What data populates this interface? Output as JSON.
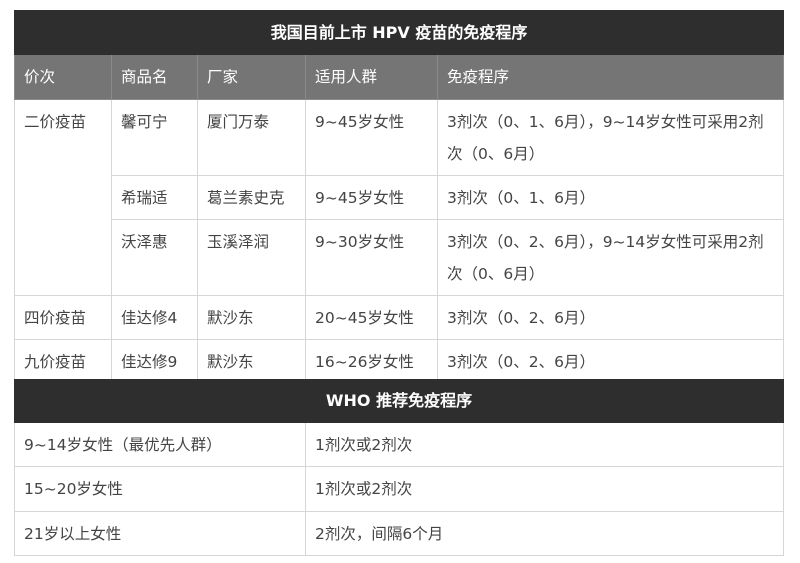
{
  "table1": {
    "title": "我国目前上市 HPV 疫苗的免疫程序",
    "headers": [
      "价次",
      "商品名",
      "厂家",
      "适用人群",
      "免疫程序"
    ],
    "rows": [
      {
        "valency": "二价疫苗",
        "brand": "馨可宁",
        "maker": "厦门万泰",
        "population": "9~45岁女性",
        "schedule": "3剂次（0、1、6月），9~14岁女性可采用2剂次（0、6月）"
      },
      {
        "brand": "希瑞适",
        "maker": "葛兰素史克",
        "population": "9~45岁女性",
        "schedule": "3剂次（0、1、6月）"
      },
      {
        "brand": "沃泽惠",
        "maker": "玉溪泽润",
        "population": "9~30岁女性",
        "schedule": "3剂次（0、2、6月），9~14岁女性可采用2剂次（0、6月）"
      },
      {
        "valency": "四价疫苗",
        "brand": "佳达修4",
        "maker": "默沙东",
        "population": "20~45岁女性",
        "schedule": "3剂次（0、2、6月）"
      },
      {
        "valency": "九价疫苗",
        "brand": "佳达修9",
        "maker": "默沙东",
        "population": "16~26岁女性",
        "schedule": "3剂次（0、2、6月）"
      }
    ]
  },
  "table2": {
    "title": "WHO 推荐免疫程序",
    "rows": [
      {
        "population": "9~14岁女性（最优先人群）",
        "schedule": "1剂次或2剂次"
      },
      {
        "population": "15~20岁女性",
        "schedule": "1剂次或2剂次"
      },
      {
        "population": "21岁以上女性",
        "schedule": "2剂次，间隔6个月"
      }
    ]
  }
}
